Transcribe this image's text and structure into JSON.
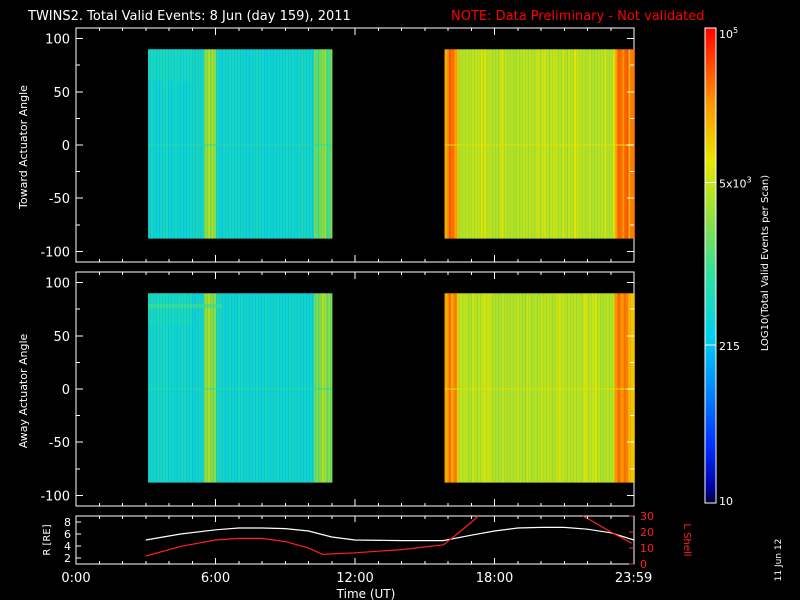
{
  "title": {
    "main": "TWINS2. Total Valid Events:  8 Jun (day 159), 2011",
    "note": "NOTE: Data Preliminary - Not validated"
  },
  "colors": {
    "background": "#000000",
    "note": "#ff0000",
    "axes": "#ffffff",
    "ephem_r": "#ffffff",
    "ephem_l": "#ff2020"
  },
  "colorbar": {
    "label": "LOG10(Total Valid Events per Scan)",
    "ticks": [
      {
        "value": 10,
        "label": "10"
      },
      {
        "value": 215,
        "label": "215"
      },
      {
        "value": 5000,
        "label": "5x10^3"
      },
      {
        "value": 100000,
        "label": "10^5"
      }
    ],
    "range": [
      10,
      100000
    ],
    "scale": "log"
  },
  "panels": [
    {
      "id": "toward",
      "ylabel": "Toward Actuator Angle"
    },
    {
      "id": "away",
      "ylabel": "Away Actuator Angle"
    }
  ],
  "ephem": {
    "ylabel_left": "R [RE]",
    "ylabel_right": "L Shell",
    "left_ticks": [
      "2",
      "4",
      "6",
      "8"
    ],
    "right_ticks": [
      "0",
      "10",
      "20",
      "30"
    ]
  },
  "xaxis": {
    "label": "Time (UT)",
    "ticks": [
      "0:00",
      "6:00",
      "12:00",
      "18:00",
      "23:59"
    ]
  },
  "date_stamp": "11 Jun 12",
  "chart_data": [
    {
      "type": "heatmap",
      "title": "TWINS2. Total Valid Events:  8 Jun (day 159), 2011",
      "panel": "toward",
      "xlabel": "",
      "ylabel": "Toward Actuator Angle",
      "xlim": [
        0,
        24
      ],
      "ylim": [
        -110,
        110
      ],
      "yticks": [
        -100,
        -50,
        0,
        50,
        100
      ],
      "data_blocks": [
        {
          "t_start_h": 3.1,
          "t_end_h": 11.0,
          "angle_range": [
            -88,
            90
          ],
          "typical_counts": 400,
          "bright_bands_h": [
            5.5,
            5.95,
            10.45,
            10.7
          ]
        },
        {
          "t_start_h": 15.85,
          "t_end_h": 23.95,
          "angle_range": [
            -88,
            90
          ],
          "typical_counts": 4000,
          "bright_bands_h": [
            16.0,
            16.3,
            23.2,
            23.7
          ]
        }
      ]
    },
    {
      "type": "heatmap",
      "panel": "away",
      "xlabel": "",
      "ylabel": "Away Actuator Angle",
      "xlim": [
        0,
        24
      ],
      "ylim": [
        -110,
        110
      ],
      "yticks": [
        -100,
        -50,
        0,
        50,
        100
      ],
      "data_blocks": [
        {
          "t_start_h": 3.1,
          "t_end_h": 11.0,
          "angle_range": [
            -88,
            90
          ],
          "typical_counts": 400,
          "bright_bands_h": [
            5.5,
            5.95,
            10.45,
            10.7
          ]
        },
        {
          "t_start_h": 15.85,
          "t_end_h": 23.95,
          "angle_range": [
            -88,
            90
          ],
          "typical_counts": 4000,
          "bright_bands_h": [
            16.0,
            16.3,
            23.2,
            23.7
          ]
        }
      ]
    },
    {
      "type": "line",
      "panel": "ephemeris",
      "xlabel": "Time (UT)",
      "xlim": [
        0,
        24
      ],
      "series": [
        {
          "name": "R [RE]",
          "axis": "left",
          "ylim": [
            1,
            9
          ],
          "x": [
            3.0,
            4.5,
            6.0,
            7.0,
            8.0,
            9.0,
            10.0,
            11.0,
            12.0,
            14.0,
            15.8,
            17.0,
            18.0,
            19.0,
            20.0,
            21.0,
            22.0,
            23.0,
            24.0
          ],
          "y": [
            5.0,
            6.0,
            6.7,
            7.0,
            7.0,
            6.9,
            6.5,
            5.5,
            5.0,
            4.9,
            4.9,
            5.8,
            6.5,
            7.0,
            7.1,
            7.1,
            6.8,
            6.2,
            5.0
          ]
        },
        {
          "name": "L Shell",
          "axis": "right",
          "ylim": [
            0,
            30
          ],
          "x": [
            3.0,
            4.5,
            6.0,
            7.0,
            8.0,
            9.0,
            10.0,
            10.6,
            12.0,
            14.0,
            15.8,
            16.5,
            17.0,
            17.3
          ],
          "y": [
            5,
            11,
            15,
            16,
            16,
            14,
            10,
            6,
            7,
            9,
            12,
            20,
            26,
            30
          ]
        },
        {
          "name": "L Shell",
          "axis": "right",
          "ylim": [
            0,
            30
          ],
          "x": [
            21.8,
            22.3,
            23.0,
            23.9
          ],
          "y": [
            30,
            26,
            20,
            13
          ]
        }
      ]
    }
  ]
}
